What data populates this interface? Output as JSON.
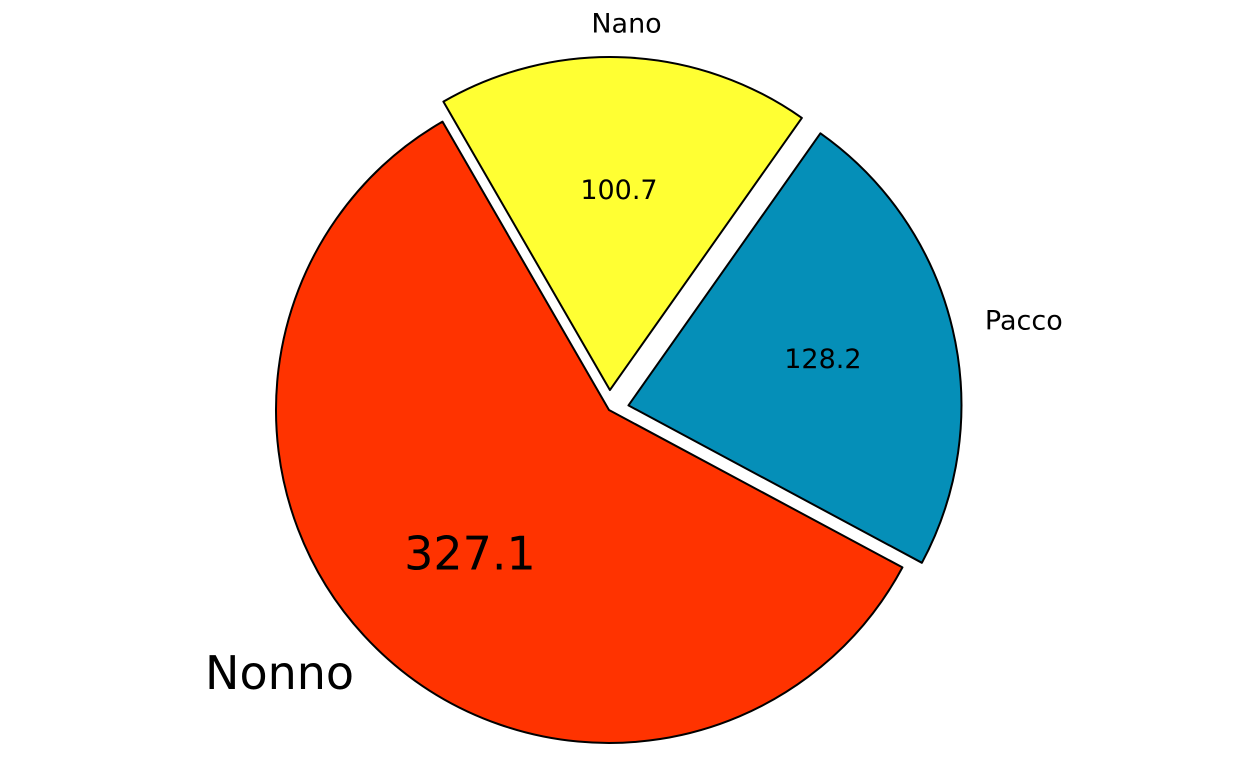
{
  "chart_data": {
    "type": "pie",
    "slices": [
      {
        "label": "Nonno",
        "value": 327.1,
        "color": "#ff3300",
        "exploded": false,
        "emphasis": true
      },
      {
        "label": "Pacco",
        "value": 128.2,
        "color": "#058fb8",
        "exploded": true,
        "emphasis": false
      },
      {
        "label": "Nano",
        "value": 100.7,
        "color": "#ffff33",
        "exploded": true,
        "emphasis": false
      }
    ],
    "value_format": "0.0",
    "legend": "none"
  }
}
